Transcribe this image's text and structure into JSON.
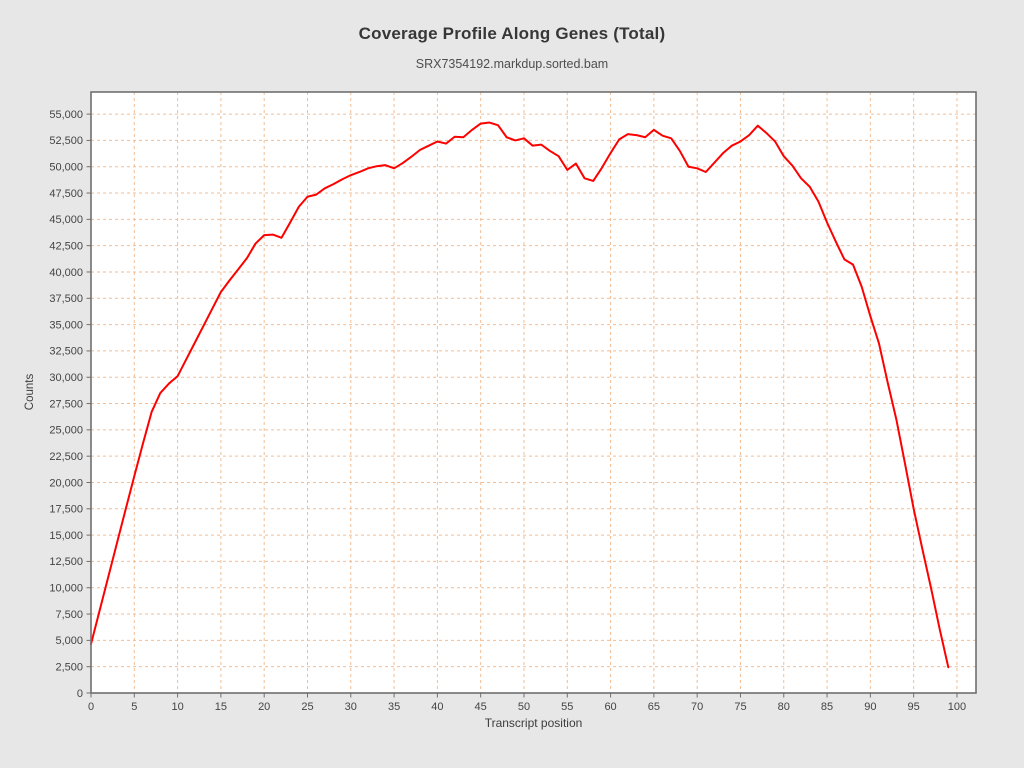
{
  "chart_data": {
    "type": "line",
    "title": "Coverage Profile Along Genes (Total)",
    "subtitle": "SRX7354192.markdup.sorted.bam",
    "xlabel": "Transcript position",
    "ylabel": "Counts",
    "grid": true,
    "legend_position": "none",
    "xlim": [
      0,
      102.2
    ],
    "ylim": [
      0,
      57100
    ],
    "x_ticks": [
      0,
      5,
      10,
      15,
      20,
      25,
      30,
      35,
      40,
      45,
      50,
      55,
      60,
      65,
      70,
      75,
      80,
      85,
      90,
      95,
      100
    ],
    "y_ticks": [
      0,
      2500,
      5000,
      7500,
      10000,
      12500,
      15000,
      17500,
      20000,
      22500,
      25000,
      27500,
      30000,
      32500,
      35000,
      37500,
      40000,
      42500,
      45000,
      47500,
      50000,
      52500,
      55000
    ],
    "colors": {
      "background": "#e7e7e7",
      "plot_background": "#ffffff",
      "gridline": "#f2bd92",
      "plot_border": "#6f6f6f",
      "tick": "#6f6f6f",
      "tick_label": "#444444",
      "series": "#fe0000",
      "title": "#373737",
      "subtitle": "#4e4e4e"
    },
    "series": [
      {
        "name": "SRX7354192.markdup.sorted.bam",
        "color": "#fe0000",
        "x_start": 0,
        "x_step": 1,
        "values": [
          4650,
          7850,
          11050,
          14250,
          17450,
          20600,
          23700,
          26700,
          28500,
          29400,
          30100,
          31700,
          33300,
          34900,
          36500,
          38100,
          39200,
          40250,
          41300,
          42700,
          43500,
          43550,
          43250,
          44700,
          46200,
          47150,
          47350,
          47950,
          48350,
          48800,
          49200,
          49500,
          49850,
          50050,
          50150,
          49850,
          50350,
          50950,
          51600,
          52000,
          52400,
          52200,
          52850,
          52800,
          53500,
          54100,
          54200,
          53950,
          52800,
          52500,
          52700,
          52000,
          52100,
          51500,
          51000,
          49700,
          50300,
          48900,
          48650,
          49900,
          51300,
          52600,
          53100,
          53000,
          52800,
          53500,
          52950,
          52700,
          51500,
          50000,
          49850,
          49500,
          50400,
          51300,
          52000,
          52400,
          53000,
          53900,
          53200,
          52400,
          51000,
          50100,
          48900,
          48100,
          46700,
          44700,
          42900,
          41200,
          40700,
          38600,
          35800,
          33200,
          29500,
          26000,
          21800,
          17500,
          13700,
          10000,
          6100,
          2450
        ]
      }
    ]
  }
}
